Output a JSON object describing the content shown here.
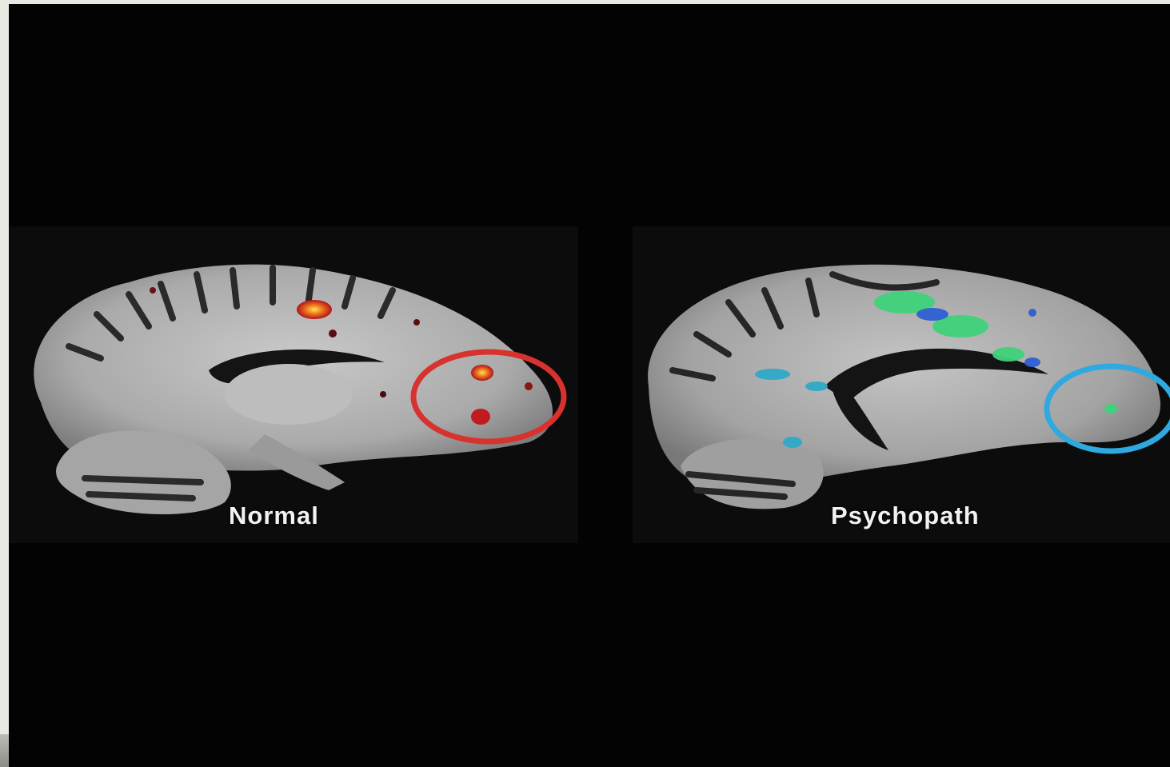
{
  "panels": {
    "left": {
      "label": "Normal",
      "highlight_color": "#d8322f",
      "activation_color": "#e0401f"
    },
    "right": {
      "label": "Psychopath",
      "highlight_color": "#2fa9e0",
      "activation_color": "#3fd27a"
    }
  },
  "colors": {
    "background": "#030303",
    "brain_gray": "#b9b9b9",
    "frame": "#e9e9e4"
  }
}
